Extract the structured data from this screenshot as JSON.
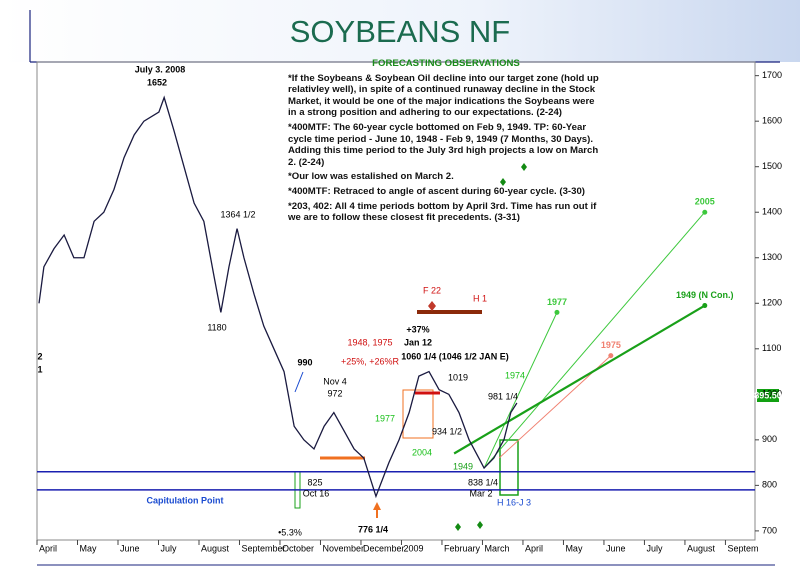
{
  "chart_data": {
    "type": "line",
    "title": "SOYBEANS NF",
    "xlim": [
      0,
      17.73
    ],
    "ylim": [
      680,
      1730
    ],
    "xticks": [
      {
        "value": 0,
        "label": "April"
      },
      {
        "value": 1,
        "label": "May"
      },
      {
        "value": 2,
        "label": "June"
      },
      {
        "value": 3,
        "label": "July"
      },
      {
        "value": 4,
        "label": "August"
      },
      {
        "value": 5,
        "label": "September"
      },
      {
        "value": 6,
        "label": "October"
      },
      {
        "value": 7,
        "label": "November"
      },
      {
        "value": 8,
        "label": "December"
      },
      {
        "value": 9,
        "label": "2009"
      },
      {
        "value": 10,
        "label": "February"
      },
      {
        "value": 11,
        "label": "March"
      },
      {
        "value": 12,
        "label": "April"
      },
      {
        "value": 13,
        "label": "May"
      },
      {
        "value": 14,
        "label": "June"
      },
      {
        "value": 15,
        "label": "July"
      },
      {
        "value": 16,
        "label": "August"
      },
      {
        "value": 17,
        "label": "Septem"
      }
    ],
    "yticks": [
      700,
      800,
      900,
      1000,
      1100,
      1200,
      1300,
      1400,
      1500,
      1600,
      1700
    ],
    "x": [
      0.05,
      0.17,
      0.42,
      0.67,
      0.91,
      1.16,
      1.41,
      1.65,
      1.9,
      2.15,
      2.4,
      2.64,
      3.01,
      3.14,
      3.38,
      3.63,
      3.88,
      4.12,
      4.37,
      4.54,
      4.74,
      4.94,
      5.11,
      5.36,
      5.6,
      5.85,
      6.1,
      6.35,
      6.59,
      6.84,
      7.09,
      7.33,
      7.58,
      7.83,
      8.07,
      8.37,
      8.69,
      8.94,
      9.19,
      9.43,
      9.68,
      9.93,
      10.17,
      10.42,
      10.67,
      10.91,
      11.04,
      11.28,
      11.53,
      11.7,
      11.85
    ],
    "series": [
      {
        "color": "#1a1a40",
        "values": [
          1200,
          1280,
          1320,
          1350,
          1300,
          1300,
          1380,
          1400,
          1450,
          1520,
          1570,
          1600,
          1620,
          1652,
          1580,
          1500,
          1420,
          1380,
          1260,
          1180,
          1280,
          1364,
          1300,
          1220,
          1150,
          1100,
          1050,
          930,
          900,
          880,
          930,
          960,
          920,
          880,
          860,
          776,
          850,
          900,
          960,
          1040,
          1050,
          1010,
          1000,
          960,
          900,
          860,
          838,
          860,
          900,
          960,
          981
        ]
      }
    ],
    "hlines": [
      830,
      790
    ],
    "hline_color": "#1a1fb0",
    "projections": [
      {
        "name": "1977",
        "color": "#3cc83c",
        "from": [
          11.04,
          838
        ],
        "to": [
          12.84,
          1180
        ]
      },
      {
        "name": "1975",
        "color": "#f08070",
        "from": [
          11.41,
          860
        ],
        "to": [
          14.17,
          1085
        ]
      },
      {
        "name": "2005",
        "color": "#3cc83c",
        "from": [
          11.04,
          838
        ],
        "to": [
          16.49,
          1400
        ]
      },
      {
        "name": "1949 (N Con.)",
        "color": "#19a019",
        "from": [
          10.3,
          870
        ],
        "to": [
          16.49,
          1195
        ]
      }
    ],
    "annotations": [
      "July 3. 2008",
      "1652",
      "1364 1/2",
      "1180",
      "990",
      "Nov 4",
      "972",
      "825",
      "Oct 16",
      "Capitulation Point",
      "776 1/4",
      "1948, 1975",
      "+25%, +26%R",
      "+37%",
      "Jan 12",
      "1060 1/4 (1046 1/2 JAN E)",
      "F 22",
      "H 1",
      "1977",
      "1019",
      "981 1/4",
      "1974",
      "934 1/2",
      "2004",
      "1949",
      "838 1/4",
      "Mar 2",
      "H 16-J 3",
      "895.50",
      "2",
      "1",
      "•5.3%"
    ]
  },
  "observations": {
    "title": "FORECASTING OBSERVATIONS",
    "items": [
      "*If the Soybeans & Soybean Oil decline into our target zone (hold up relativley well), in spite of a continued runaway decline in the Stock Market, it would be one of the major indications the Soybeans were in a strong position and adhering to our expectations. (2-24)",
      "*400MTF: The 60-year cycle bottomed on Feb 9, 1949. TP: 60-Year cycle time period - June 10, 1948 - Feb 9, 1949 (7 Months, 30 Days). Adding this time period to the July 3rd high projects a low on March 2. (2-24)",
      "*Our low was estalished on March 2.",
      "*400MTF: Retraced to angle of ascent during 60-year cycle. (3-30)",
      "*203, 402: All 4 time periods bottom by April 3rd. Time has run out if we are to follow these closest fit precedents. (3-31)"
    ]
  }
}
